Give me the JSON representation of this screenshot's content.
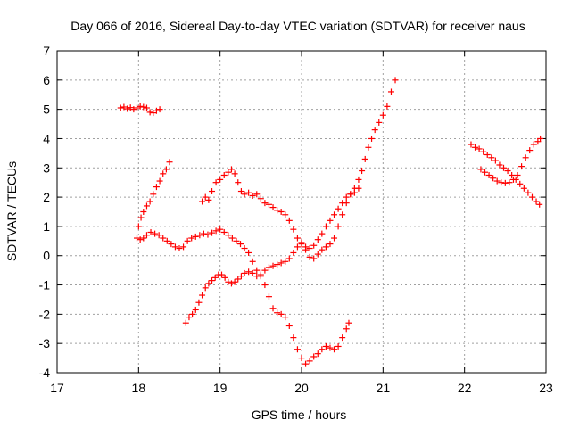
{
  "chart_data": {
    "type": "scatter",
    "title": "Day 066 of 2016, Sidereal Day-to-day VTEC variation (SDTVAR) for receiver naus",
    "xlabel": "GPS time / hours",
    "ylabel": "SDTVAR / TECUs",
    "xlim": [
      17,
      23
    ],
    "ylim": [
      -4,
      7
    ],
    "xticks": [
      17,
      18,
      19,
      20,
      21,
      22,
      23
    ],
    "yticks": [
      -4,
      -3,
      -2,
      -1,
      0,
      1,
      2,
      3,
      4,
      5,
      6,
      7
    ],
    "grid": true,
    "marker": "plus",
    "marker_color": "#ff0000",
    "series": [
      {
        "values": [
          [
            17.78,
            5.05
          ],
          [
            17.82,
            5.08
          ],
          [
            17.86,
            5.02
          ],
          [
            17.9,
            5.06
          ],
          [
            17.94,
            5.0
          ],
          [
            17.98,
            5.05
          ],
          [
            18.02,
            5.1
          ],
          [
            18.06,
            5.08
          ],
          [
            18.1,
            5.05
          ],
          [
            18.14,
            4.9
          ],
          [
            18.18,
            4.88
          ],
          [
            18.22,
            4.95
          ],
          [
            18.26,
            5.0
          ]
        ]
      },
      {
        "values": [
          [
            17.98,
            0.6
          ],
          [
            18.0,
            1.0
          ],
          [
            18.03,
            1.3
          ],
          [
            18.06,
            1.5
          ],
          [
            18.1,
            1.7
          ],
          [
            18.14,
            1.85
          ],
          [
            18.18,
            2.1
          ],
          [
            18.22,
            2.35
          ],
          [
            18.26,
            2.55
          ],
          [
            18.3,
            2.8
          ],
          [
            18.34,
            2.95
          ],
          [
            18.38,
            3.2
          ]
        ]
      },
      {
        "values": [
          [
            18.02,
            0.55
          ],
          [
            18.06,
            0.6
          ],
          [
            18.1,
            0.7
          ],
          [
            18.15,
            0.8
          ],
          [
            18.2,
            0.75
          ],
          [
            18.25,
            0.7
          ],
          [
            18.3,
            0.6
          ],
          [
            18.35,
            0.5
          ],
          [
            18.4,
            0.4
          ],
          [
            18.45,
            0.3
          ],
          [
            18.5,
            0.25
          ],
          [
            18.55,
            0.3
          ],
          [
            18.6,
            0.5
          ],
          [
            18.65,
            0.6
          ],
          [
            18.7,
            0.65
          ],
          [
            18.75,
            0.7
          ],
          [
            18.8,
            0.75
          ],
          [
            18.85,
            0.72
          ],
          [
            18.9,
            0.78
          ],
          [
            18.95,
            0.85
          ],
          [
            19.0,
            0.9
          ],
          [
            19.05,
            0.8
          ],
          [
            19.1,
            0.7
          ],
          [
            19.15,
            0.6
          ],
          [
            19.2,
            0.5
          ],
          [
            19.25,
            0.4
          ],
          [
            19.3,
            0.25
          ],
          [
            19.35,
            0.1
          ],
          [
            19.4,
            -0.2
          ],
          [
            19.45,
            -0.5
          ],
          [
            19.5,
            -0.7
          ],
          [
            19.55,
            -1.0
          ],
          [
            19.6,
            -1.4
          ],
          [
            19.65,
            -1.8
          ],
          [
            19.7,
            -1.95
          ],
          [
            19.75,
            -2.0
          ],
          [
            19.8,
            -2.1
          ],
          [
            19.85,
            -2.4
          ],
          [
            19.9,
            -2.8
          ],
          [
            19.95,
            -3.2
          ],
          [
            20.0,
            -3.5
          ],
          [
            20.05,
            -3.7
          ],
          [
            20.1,
            -3.6
          ],
          [
            20.15,
            -3.45
          ],
          [
            20.2,
            -3.35
          ],
          [
            20.25,
            -3.2
          ],
          [
            20.3,
            -3.1
          ],
          [
            20.35,
            -3.15
          ],
          [
            20.4,
            -3.2
          ],
          [
            20.45,
            -3.1
          ],
          [
            20.5,
            -2.8
          ],
          [
            20.55,
            -2.5
          ],
          [
            20.58,
            -2.3
          ]
        ]
      },
      {
        "values": [
          [
            18.58,
            -2.3
          ],
          [
            18.62,
            -2.1
          ],
          [
            18.66,
            -2.0
          ],
          [
            18.7,
            -1.85
          ],
          [
            18.74,
            -1.6
          ],
          [
            18.78,
            -1.35
          ],
          [
            18.82,
            -1.1
          ],
          [
            18.86,
            -0.95
          ],
          [
            18.9,
            -0.85
          ],
          [
            18.94,
            -0.75
          ],
          [
            18.98,
            -0.65
          ],
          [
            19.02,
            -0.65
          ],
          [
            19.06,
            -0.75
          ],
          [
            19.1,
            -0.9
          ],
          [
            19.14,
            -0.95
          ],
          [
            19.18,
            -0.9
          ],
          [
            19.22,
            -0.8
          ],
          [
            19.26,
            -0.7
          ],
          [
            19.3,
            -0.6
          ],
          [
            19.35,
            -0.55
          ],
          [
            19.4,
            -0.6
          ],
          [
            19.45,
            -0.7
          ],
          [
            19.5,
            -0.65
          ],
          [
            19.55,
            -0.5
          ],
          [
            19.6,
            -0.4
          ],
          [
            19.65,
            -0.35
          ],
          [
            19.7,
            -0.3
          ],
          [
            19.75,
            -0.25
          ],
          [
            19.8,
            -0.2
          ],
          [
            19.85,
            -0.1
          ],
          [
            19.9,
            0.1
          ],
          [
            19.95,
            0.3
          ],
          [
            20.0,
            0.4
          ],
          [
            20.05,
            0.3
          ],
          [
            20.1,
            0.25
          ],
          [
            20.15,
            0.35
          ],
          [
            20.2,
            0.55
          ],
          [
            20.25,
            0.75
          ],
          [
            20.3,
            1.0
          ],
          [
            20.35,
            1.2
          ],
          [
            20.4,
            1.4
          ],
          [
            20.45,
            1.6
          ],
          [
            20.5,
            1.8
          ],
          [
            20.55,
            2.0
          ],
          [
            20.6,
            2.1
          ],
          [
            20.65,
            2.15
          ],
          [
            20.7,
            2.3
          ]
        ]
      },
      {
        "values": [
          [
            18.78,
            1.85
          ],
          [
            18.82,
            2.0
          ],
          [
            18.86,
            1.9
          ],
          [
            18.9,
            2.2
          ],
          [
            18.95,
            2.5
          ],
          [
            19.0,
            2.6
          ],
          [
            19.05,
            2.75
          ],
          [
            19.1,
            2.85
          ],
          [
            19.14,
            2.95
          ],
          [
            19.18,
            2.8
          ],
          [
            19.22,
            2.5
          ],
          [
            19.26,
            2.2
          ],
          [
            19.3,
            2.1
          ],
          [
            19.35,
            2.15
          ],
          [
            19.4,
            2.05
          ],
          [
            19.45,
            2.1
          ],
          [
            19.5,
            1.95
          ],
          [
            19.55,
            1.8
          ],
          [
            19.6,
            1.75
          ],
          [
            19.65,
            1.65
          ],
          [
            19.7,
            1.55
          ],
          [
            19.75,
            1.5
          ],
          [
            19.8,
            1.4
          ],
          [
            19.85,
            1.2
          ],
          [
            19.9,
            0.9
          ],
          [
            19.95,
            0.6
          ],
          [
            20.0,
            0.45
          ],
          [
            20.05,
            0.2
          ],
          [
            20.1,
            -0.05
          ],
          [
            20.15,
            -0.1
          ],
          [
            20.2,
            0.05
          ],
          [
            20.25,
            0.2
          ],
          [
            20.3,
            0.3
          ],
          [
            20.35,
            0.4
          ],
          [
            20.4,
            0.6
          ],
          [
            20.45,
            1.0
          ],
          [
            20.5,
            1.4
          ],
          [
            20.55,
            1.8
          ],
          [
            20.6,
            2.1
          ],
          [
            20.65,
            2.3
          ],
          [
            20.7,
            2.6
          ],
          [
            20.74,
            2.9
          ],
          [
            20.78,
            3.3
          ],
          [
            20.82,
            3.7
          ],
          [
            20.86,
            4.0
          ],
          [
            20.9,
            4.3
          ],
          [
            20.95,
            4.55
          ],
          [
            21.0,
            4.8
          ],
          [
            21.05,
            5.1
          ],
          [
            21.1,
            5.6
          ],
          [
            21.15,
            6.0
          ]
        ]
      },
      {
        "values": [
          [
            22.08,
            3.8
          ],
          [
            22.13,
            3.7
          ],
          [
            22.18,
            3.65
          ],
          [
            22.23,
            3.55
          ],
          [
            22.28,
            3.45
          ],
          [
            22.33,
            3.35
          ],
          [
            22.38,
            3.25
          ],
          [
            22.43,
            3.1
          ],
          [
            22.48,
            3.0
          ],
          [
            22.53,
            2.9
          ],
          [
            22.58,
            2.75
          ],
          [
            22.63,
            2.6
          ],
          [
            22.68,
            2.45
          ],
          [
            22.73,
            2.3
          ],
          [
            22.78,
            2.15
          ],
          [
            22.83,
            2.0
          ],
          [
            22.88,
            1.85
          ],
          [
            22.92,
            1.75
          ]
        ]
      },
      {
        "values": [
          [
            22.2,
            2.95
          ],
          [
            22.25,
            2.85
          ],
          [
            22.3,
            2.75
          ],
          [
            22.35,
            2.65
          ],
          [
            22.4,
            2.55
          ],
          [
            22.45,
            2.5
          ],
          [
            22.5,
            2.48
          ],
          [
            22.55,
            2.5
          ],
          [
            22.6,
            2.6
          ],
          [
            22.65,
            2.75
          ],
          [
            22.7,
            3.05
          ],
          [
            22.75,
            3.35
          ],
          [
            22.8,
            3.6
          ],
          [
            22.85,
            3.8
          ],
          [
            22.9,
            3.9
          ],
          [
            22.93,
            4.0
          ]
        ]
      }
    ]
  }
}
